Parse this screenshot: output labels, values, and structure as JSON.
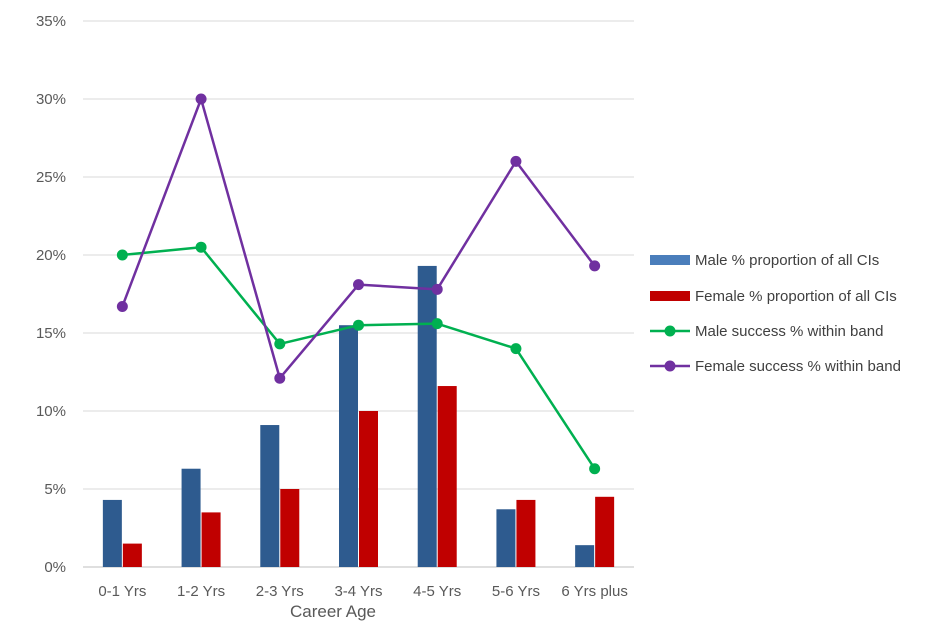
{
  "chart_data": {
    "type": "bar",
    "title": "",
    "xlabel": "Career Age",
    "ylabel": "",
    "ylim": [
      0,
      35
    ],
    "y_ticks": [
      0,
      5,
      10,
      15,
      20,
      25,
      30,
      35
    ],
    "y_tick_labels": [
      "0%",
      "5%",
      "10%",
      "15%",
      "20%",
      "25%",
      "30%",
      "35%"
    ],
    "grid": true,
    "legend_position": "right",
    "categories": [
      "0-1 Yrs",
      "1-2 Yrs",
      "2-3 Yrs",
      "3-4 Yrs",
      "4-5 Yrs",
      "5-6 Yrs",
      "6 Yrs plus"
    ],
    "series": [
      {
        "name": "Male % proportion of all CIs",
        "kind": "bar",
        "color": "#2e5b8f",
        "legend_color": "#4a7ebb",
        "values": [
          4.3,
          6.3,
          9.1,
          15.5,
          19.3,
          3.7,
          1.4
        ]
      },
      {
        "name": "Female % proportion of all CIs",
        "kind": "bar",
        "color": "#c00000",
        "legend_color": "#c00000",
        "values": [
          1.5,
          3.5,
          5.0,
          10.0,
          11.6,
          4.3,
          4.5
        ]
      },
      {
        "name": "Male success % within band",
        "kind": "line",
        "color": "#00b050",
        "legend_color": "#00b050",
        "values": [
          20.0,
          20.5,
          14.3,
          15.5,
          15.6,
          14.0,
          6.3
        ]
      },
      {
        "name": "Female success % within band",
        "kind": "line",
        "color": "#7030a0",
        "legend_color": "#7030a0",
        "values": [
          16.7,
          30.0,
          12.1,
          18.1,
          17.8,
          26.0,
          19.3
        ]
      }
    ]
  }
}
